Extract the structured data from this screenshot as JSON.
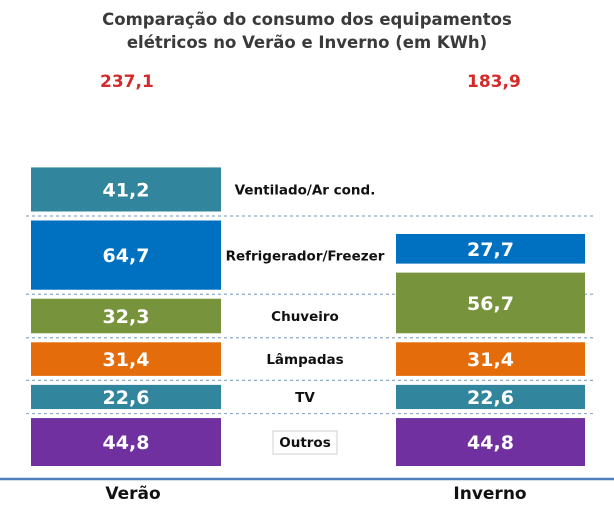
{
  "chart_data": {
    "type": "bar",
    "title_lines": [
      "Comparação do consumo dos equipamentos",
      "elétricos no Verão e Inverno (em KWh)"
    ],
    "categories": [
      "Outros",
      "TV",
      "Lâmpadas",
      "Chuveiro",
      "Refrigerador/Freezer",
      "Ventilado/Ar cond."
    ],
    "category_labels": {
      "Outros": "Outros",
      "TV": "TV",
      "Lâmpadas": "Lâmpadas",
      "Chuveiro": "Chuveiro",
      "Refrigerador/Freezer": "Refrigerador/Freezer",
      "Ventilado/Ar cond.": "Ventilado/Ar cond."
    },
    "columns": [
      {
        "name": "Verão",
        "total": 237.1,
        "total_label": "237,1",
        "values": [
          {
            "category": "Outros",
            "value": 44.8,
            "label": "44,8",
            "color": "#7030a0"
          },
          {
            "category": "TV",
            "value": 22.6,
            "label": "22,6",
            "color": "#31859c"
          },
          {
            "category": "Lâmpadas",
            "value": 31.4,
            "label": "31,4",
            "color": "#e46c0a"
          },
          {
            "category": "Chuveiro",
            "value": 32.3,
            "label": "32,3",
            "color": "#77933c"
          },
          {
            "category": "Refrigerador/Freezer",
            "value": 64.7,
            "label": "64,7",
            "color": "#0070c0"
          },
          {
            "category": "Ventilado/Ar cond.",
            "value": 41.2,
            "label": "41,2",
            "color": "#31859c"
          }
        ]
      },
      {
        "name": "Inverno",
        "total": 183.9,
        "total_label": "183,9",
        "values": [
          {
            "category": "Outros",
            "value": 44.8,
            "label": "44,8",
            "color": "#7030a0"
          },
          {
            "category": "TV",
            "value": 22.6,
            "label": "22,6",
            "color": "#31859c"
          },
          {
            "category": "Lâmpadas",
            "value": 31.4,
            "label": "31,4",
            "color": "#e46c0a"
          },
          {
            "category": "Chuveiro",
            "value": 56.7,
            "label": "56,7",
            "color": "#77933c"
          },
          {
            "category": "Refrigerador/Freezer",
            "value": 27.7,
            "label": "27,7",
            "color": "#0070c0"
          }
        ]
      }
    ],
    "axis_color": "#4f81bd",
    "divider_color": "#8fa9c8"
  }
}
